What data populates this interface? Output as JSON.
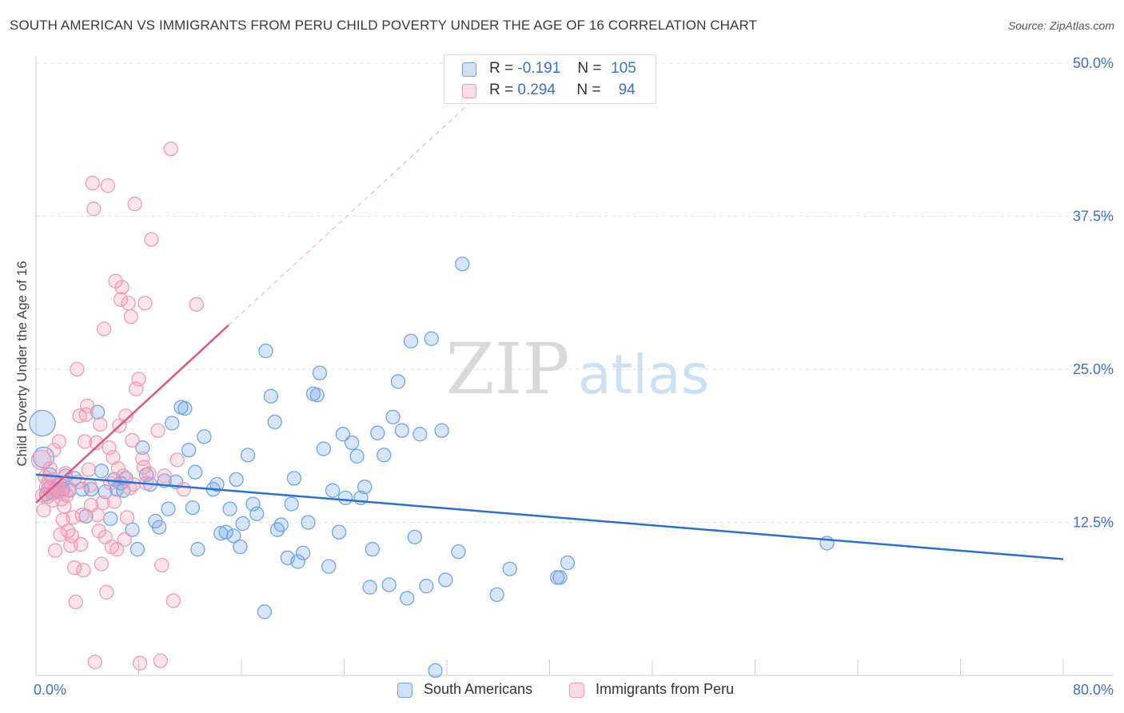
{
  "title": "SOUTH AMERICAN VS IMMIGRANTS FROM PERU CHILD POVERTY UNDER THE AGE OF 16 CORRELATION CHART",
  "source": "Source: ZipAtlas.com",
  "watermark": {
    "zip": "ZIP",
    "atlas": "atlas"
  },
  "stats": [
    {
      "r_label": "R =",
      "r_value": "-0.191",
      "n_label": "N =",
      "n_value": "105",
      "color": "#6fa3e8"
    },
    {
      "r_label": "R =",
      "r_value": "0.294",
      "n_label": "N =",
      "n_value": "94",
      "color": "#f09ab4"
    }
  ],
  "legend": [
    {
      "label": "South Americans",
      "color": "#6fa3e8"
    },
    {
      "label": "Immigrants from Peru",
      "color": "#f09ab4"
    }
  ],
  "chart_data": {
    "type": "scatter",
    "title": "SOUTH AMERICAN VS IMMIGRANTS FROM PERU CHILD POVERTY UNDER THE AGE OF 16 CORRELATION CHART",
    "xlabel": "",
    "ylabel": "Child Poverty Under the Age of 16",
    "xlim": [
      0,
      80
    ],
    "ylim": [
      0,
      50
    ],
    "x_ticks": [
      {
        "value": 0,
        "label": "0.0%"
      },
      {
        "value": 80,
        "label": "80.0%"
      }
    ],
    "y_ticks": [
      {
        "value": 12.5,
        "label": "12.5%"
      },
      {
        "value": 25,
        "label": "25.0%"
      },
      {
        "value": 37.5,
        "label": "37.5%"
      },
      {
        "value": 50,
        "label": "50.0%"
      }
    ],
    "grid": true,
    "series": [
      {
        "name": "South Americans",
        "color": "#6fa3e8",
        "line_color": "#2b6fd1",
        "trend": {
          "x": [
            0,
            80
          ],
          "y": [
            16.4,
            9.5
          ]
        },
        "points": [
          [
            0.5,
            20.6
          ],
          [
            0.6,
            17.8
          ],
          [
            0.8,
            14.8
          ],
          [
            1.0,
            15.3
          ],
          [
            1.1,
            16.4
          ],
          [
            1.3,
            14.9
          ],
          [
            1.5,
            15.2
          ],
          [
            1.7,
            15.0
          ],
          [
            1.9,
            15.6
          ],
          [
            2.1,
            15.2
          ],
          [
            2.3,
            16.3
          ],
          [
            2.6,
            15.1
          ],
          [
            3.0,
            16.1
          ],
          [
            3.6,
            15.2
          ],
          [
            3.9,
            13.0
          ],
          [
            4.3,
            15.2
          ],
          [
            4.8,
            21.5
          ],
          [
            5.1,
            16.7
          ],
          [
            5.4,
            15.0
          ],
          [
            5.8,
            12.8
          ],
          [
            6.1,
            16.0
          ],
          [
            6.3,
            15.2
          ],
          [
            6.6,
            15.7
          ],
          [
            6.8,
            15.1
          ],
          [
            7.0,
            16.1
          ],
          [
            7.5,
            11.9
          ],
          [
            7.9,
            10.3
          ],
          [
            8.3,
            18.6
          ],
          [
            8.6,
            16.4
          ],
          [
            8.9,
            15.6
          ],
          [
            9.3,
            12.6
          ],
          [
            9.6,
            12.1
          ],
          [
            10.0,
            15.9
          ],
          [
            10.3,
            13.6
          ],
          [
            10.6,
            20.6
          ],
          [
            10.9,
            15.8
          ],
          [
            11.3,
            21.9
          ],
          [
            11.6,
            21.8
          ],
          [
            11.9,
            18.4
          ],
          [
            12.2,
            13.7
          ],
          [
            12.4,
            16.6
          ],
          [
            12.6,
            10.3
          ],
          [
            13.1,
            19.5
          ],
          [
            13.8,
            15.2
          ],
          [
            14.1,
            15.6
          ],
          [
            14.4,
            11.6
          ],
          [
            14.8,
            11.7
          ],
          [
            15.1,
            13.6
          ],
          [
            15.4,
            11.4
          ],
          [
            15.6,
            16.0
          ],
          [
            15.9,
            10.5
          ],
          [
            16.1,
            12.4
          ],
          [
            16.5,
            18.0
          ],
          [
            16.9,
            14.0
          ],
          [
            17.2,
            13.2
          ],
          [
            17.8,
            5.2
          ],
          [
            17.9,
            26.5
          ],
          [
            18.3,
            22.8
          ],
          [
            18.6,
            20.7
          ],
          [
            18.8,
            11.9
          ],
          [
            19.1,
            12.3
          ],
          [
            19.6,
            9.6
          ],
          [
            19.9,
            14.0
          ],
          [
            20.1,
            16.1
          ],
          [
            20.4,
            9.3
          ],
          [
            20.8,
            10.0
          ],
          [
            21.2,
            12.5
          ],
          [
            21.6,
            23.0
          ],
          [
            21.9,
            22.9
          ],
          [
            22.1,
            24.7
          ],
          [
            22.4,
            18.5
          ],
          [
            22.8,
            8.9
          ],
          [
            23.1,
            15.1
          ],
          [
            23.6,
            11.7
          ],
          [
            23.9,
            19.7
          ],
          [
            24.1,
            14.5
          ],
          [
            24.6,
            19.0
          ],
          [
            25.0,
            17.9
          ],
          [
            25.3,
            14.5
          ],
          [
            25.6,
            15.4
          ],
          [
            26.0,
            7.2
          ],
          [
            26.2,
            10.3
          ],
          [
            26.6,
            19.8
          ],
          [
            27.1,
            18.0
          ],
          [
            27.5,
            7.4
          ],
          [
            27.8,
            21.1
          ],
          [
            28.2,
            24.0
          ],
          [
            28.5,
            20.0
          ],
          [
            28.9,
            6.3
          ],
          [
            29.2,
            27.3
          ],
          [
            29.5,
            11.3
          ],
          [
            29.9,
            19.7
          ],
          [
            30.4,
            7.3
          ],
          [
            30.8,
            27.5
          ],
          [
            31.1,
            0.4
          ],
          [
            31.6,
            20.0
          ],
          [
            31.9,
            7.8
          ],
          [
            32.9,
            10.1
          ],
          [
            33.2,
            33.6
          ],
          [
            35.9,
            6.6
          ],
          [
            36.9,
            8.7
          ],
          [
            40.6,
            8.0
          ],
          [
            40.8,
            8.0
          ],
          [
            41.4,
            9.2
          ],
          [
            61.6,
            10.8
          ]
        ]
      },
      {
        "name": "Immigrants from Peru",
        "color": "#f09ab4",
        "line_color": "#e05585",
        "trend": {
          "x": [
            0,
            15
          ],
          "y": [
            14.1,
            28.6
          ]
        },
        "points": [
          [
            0.4,
            17.6
          ],
          [
            0.5,
            14.7
          ],
          [
            0.6,
            13.5
          ],
          [
            0.7,
            16.2
          ],
          [
            0.8,
            15.4
          ],
          [
            0.9,
            14.6
          ],
          [
            1.0,
            15.9
          ],
          [
            1.1,
            16.9
          ],
          [
            1.2,
            14.9
          ],
          [
            1.3,
            14.3
          ],
          [
            1.4,
            18.4
          ],
          [
            1.5,
            10.2
          ],
          [
            1.6,
            15.5
          ],
          [
            1.7,
            15.2
          ],
          [
            1.8,
            19.1
          ],
          [
            1.9,
            11.5
          ],
          [
            2.0,
            15.0
          ],
          [
            2.1,
            12.7
          ],
          [
            2.2,
            13.8
          ],
          [
            2.3,
            16.5
          ],
          [
            2.4,
            14.7
          ],
          [
            2.5,
            11.8
          ],
          [
            2.6,
            15.2
          ],
          [
            2.7,
            10.6
          ],
          [
            2.8,
            11.4
          ],
          [
            2.9,
            12.9
          ],
          [
            3.0,
            8.8
          ],
          [
            3.1,
            6.0
          ],
          [
            3.2,
            25.0
          ],
          [
            3.3,
            15.8
          ],
          [
            3.4,
            21.2
          ],
          [
            3.5,
            10.7
          ],
          [
            3.6,
            13.1
          ],
          [
            3.7,
            8.6
          ],
          [
            3.8,
            19.1
          ],
          [
            3.9,
            21.3
          ],
          [
            4.0,
            22.0
          ],
          [
            4.1,
            16.8
          ],
          [
            4.2,
            15.5
          ],
          [
            4.3,
            13.9
          ],
          [
            4.4,
            40.2
          ],
          [
            4.5,
            38.1
          ],
          [
            4.6,
            1.1
          ],
          [
            4.7,
            19.0
          ],
          [
            4.8,
            13.1
          ],
          [
            4.9,
            11.8
          ],
          [
            5.0,
            20.5
          ],
          [
            5.1,
            9.1
          ],
          [
            5.2,
            14.1
          ],
          [
            5.3,
            28.3
          ],
          [
            5.4,
            11.3
          ],
          [
            5.5,
            6.8
          ],
          [
            5.6,
            40.0
          ],
          [
            5.7,
            18.6
          ],
          [
            5.8,
            15.7
          ],
          [
            5.9,
            10.5
          ],
          [
            6.0,
            17.8
          ],
          [
            6.1,
            14.2
          ],
          [
            6.2,
            32.2
          ],
          [
            6.3,
            10.3
          ],
          [
            6.4,
            16.9
          ],
          [
            6.5,
            20.4
          ],
          [
            6.6,
            30.7
          ],
          [
            6.7,
            31.7
          ],
          [
            6.8,
            16.3
          ],
          [
            6.9,
            11.1
          ],
          [
            7.0,
            21.2
          ],
          [
            7.1,
            12.9
          ],
          [
            7.2,
            30.4
          ],
          [
            7.3,
            15.3
          ],
          [
            7.4,
            29.3
          ],
          [
            7.5,
            19.2
          ],
          [
            7.6,
            15.6
          ],
          [
            7.7,
            38.5
          ],
          [
            7.8,
            23.4
          ],
          [
            8.0,
            24.2
          ],
          [
            8.1,
            1.0
          ],
          [
            8.3,
            17.7
          ],
          [
            8.4,
            17.0
          ],
          [
            8.5,
            30.4
          ],
          [
            8.6,
            15.7
          ],
          [
            8.8,
            16.5
          ],
          [
            9.0,
            35.6
          ],
          [
            9.5,
            20.0
          ],
          [
            9.7,
            1.2
          ],
          [
            9.8,
            9.0
          ],
          [
            10.0,
            16.3
          ],
          [
            10.5,
            43.0
          ],
          [
            10.7,
            6.1
          ],
          [
            11.0,
            17.6
          ],
          [
            11.5,
            15.2
          ],
          [
            12.5,
            30.3
          ],
          [
            1.3,
            16.0
          ],
          [
            2.0,
            14.4
          ]
        ]
      }
    ]
  }
}
